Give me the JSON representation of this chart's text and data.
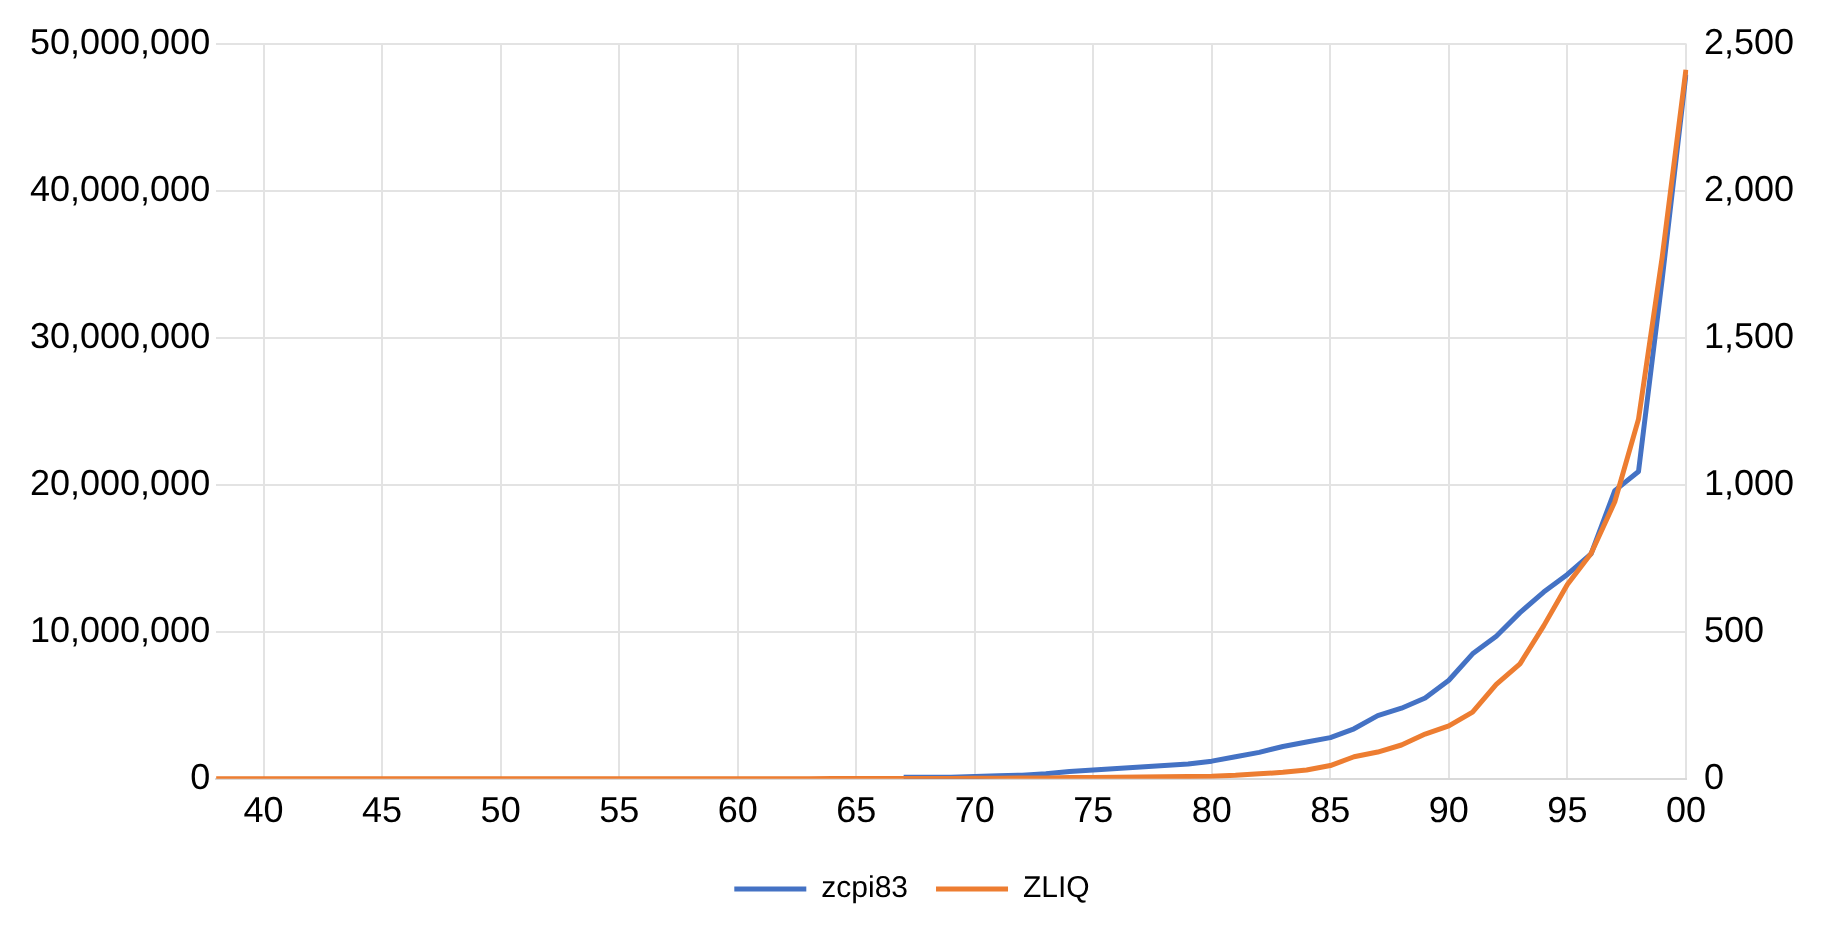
{
  "chart_data": {
    "type": "line",
    "categories": [
      null,
      null,
      "40",
      null,
      null,
      null,
      null,
      "45",
      null,
      null,
      null,
      null,
      "50",
      null,
      null,
      null,
      null,
      "55",
      null,
      null,
      null,
      null,
      "60",
      null,
      null,
      null,
      null,
      "65",
      null,
      null,
      null,
      null,
      "70",
      null,
      null,
      null,
      null,
      "75",
      null,
      null,
      null,
      null,
      "80",
      null,
      null,
      null,
      null,
      "85",
      null,
      null,
      null,
      null,
      "90",
      null,
      null,
      null,
      null,
      "95",
      null,
      null,
      null,
      null,
      "00"
    ],
    "series": [
      {
        "name": "zcpi83",
        "color": "#4472c4",
        "values": [
          null,
          null,
          null,
          null,
          null,
          null,
          null,
          null,
          null,
          null,
          null,
          null,
          null,
          null,
          null,
          null,
          null,
          null,
          null,
          null,
          null,
          null,
          null,
          null,
          null,
          null,
          null,
          null,
          null,
          100000,
          100000,
          100000,
          150000,
          200000,
          250000,
          350000,
          500000,
          600000,
          700000,
          800000,
          900000,
          1000000,
          1200000,
          1500000,
          1800000,
          2200000,
          2500000,
          2800000,
          3400000,
          4300000,
          4800000,
          5500000,
          6700000,
          8500000,
          9700000,
          11300000,
          12700000,
          13900000,
          15300000,
          19600000,
          20900000,
          34000000,
          47900000
        ]
      },
      {
        "name": "ZLIQ",
        "color": "#ed7d31",
        "axis": "y2",
        "values": [
          0,
          0,
          0,
          0,
          0,
          0,
          0,
          0,
          0,
          0,
          0,
          0,
          0,
          0,
          0,
          0,
          0,
          0,
          0,
          0,
          0,
          0,
          0,
          0,
          0,
          0,
          1,
          1,
          1,
          1,
          1,
          1,
          2,
          2,
          3,
          3,
          4,
          4,
          5,
          6,
          7,
          8,
          9,
          12,
          17,
          22,
          30,
          45,
          75,
          91,
          115,
          152,
          180,
          227,
          321,
          391,
          520,
          661,
          766,
          942,
          1223,
          1774,
          2411
        ]
      }
    ],
    "ylim": [
      0,
      50000000
    ],
    "yticks": [
      0,
      {
        "value": 10000000,
        "label": "10,000,000"
      },
      {
        "value": 20000000,
        "label": "20,000,000"
      },
      {
        "value": 30000000,
        "label": "30,000,000"
      },
      {
        "value": 40000000,
        "label": "40,000,000"
      },
      {
        "value": 50000000,
        "label": "50,000,000"
      }
    ],
    "y2lim": [
      0,
      2500
    ],
    "y2ticks": [
      0,
      500,
      {
        "value": 1000,
        "label": "1,000"
      },
      {
        "value": 1500,
        "label": "1,500"
      },
      {
        "value": 2000,
        "label": "2,000"
      },
      {
        "value": 2500,
        "label": "2,500"
      }
    ],
    "grid": true,
    "legend": "bottom",
    "marker": "none",
    "line_style": "solid"
  }
}
